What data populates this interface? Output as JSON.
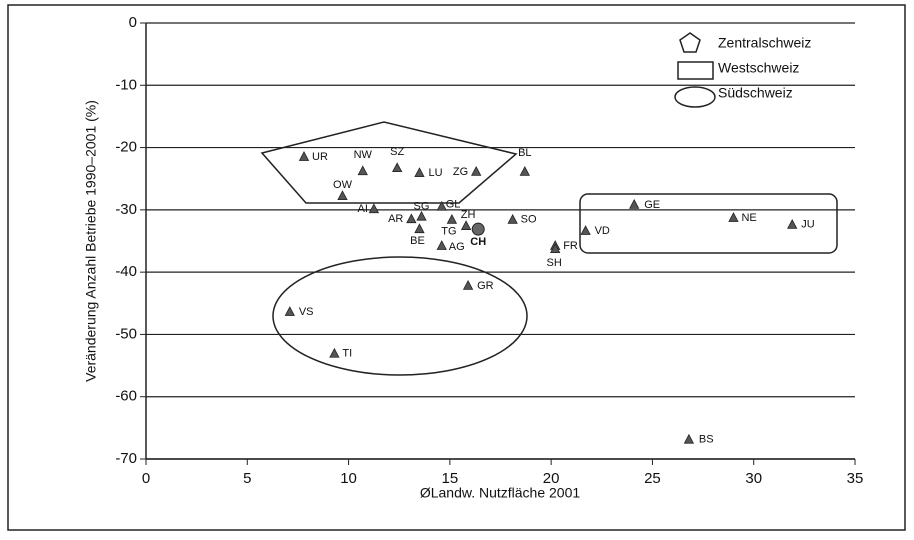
{
  "chart_data": {
    "type": "scatter",
    "x_label": "ØLandw. Nutzfläche 2001",
    "y_label": "Veränderung Anzahl Betriebe 1990–2001 (%)",
    "xlim": [
      0,
      35
    ],
    "xticks": [
      0,
      5,
      10,
      15,
      20,
      25,
      30,
      35
    ],
    "ylim": [
      -70,
      0
    ],
    "yticks": [
      0,
      -10,
      -20,
      -30,
      -40,
      -50,
      -60,
      -70
    ],
    "grid": true,
    "regions": [
      {
        "name": "Zentralschweiz",
        "shape": "pentagon"
      },
      {
        "name": "Westschweiz",
        "shape": "rectangle"
      },
      {
        "name": "Südschweiz",
        "shape": "ellipse"
      }
    ],
    "series": [
      {
        "marker": "triangle",
        "color": "#555555",
        "labels": [
          "UR",
          "NW",
          "SZ",
          "LU",
          "ZG",
          "BL",
          "OW",
          "AI",
          "SG",
          "GL",
          "AR",
          "ZH",
          "TG",
          "BE",
          "AG",
          "SO",
          "FR",
          "SH",
          "VD",
          "GE",
          "NE",
          "JU",
          "GR",
          "VS",
          "TI",
          "BS"
        ],
        "x": [
          7.8,
          10.7,
          12.4,
          13.5,
          16.3,
          18.7,
          9.7,
          11.25,
          13.6,
          14.6,
          13.1,
          15.8,
          15.1,
          13.5,
          14.6,
          18.1,
          20.2,
          20.2,
          21.7,
          24.1,
          29.0,
          31.9,
          15.9,
          7.1,
          9.3,
          26.8
        ],
        "values": [
          -21.5,
          -23.8,
          -23.3,
          -24.1,
          -23.9,
          -23.9,
          -27.8,
          -29.9,
          -31.1,
          -29.5,
          -31.5,
          -32.6,
          -31.6,
          -33.1,
          -35.8,
          -31.6,
          -35.8,
          -36.3,
          -33.4,
          -29.2,
          -31.3,
          -32.4,
          -42.2,
          -46.4,
          -53.1,
          -66.9
        ]
      },
      {
        "marker": "circle",
        "color": "#666666",
        "labels": [
          "CH"
        ],
        "x": [
          16.4
        ],
        "values": [
          -33.1
        ]
      }
    ]
  }
}
